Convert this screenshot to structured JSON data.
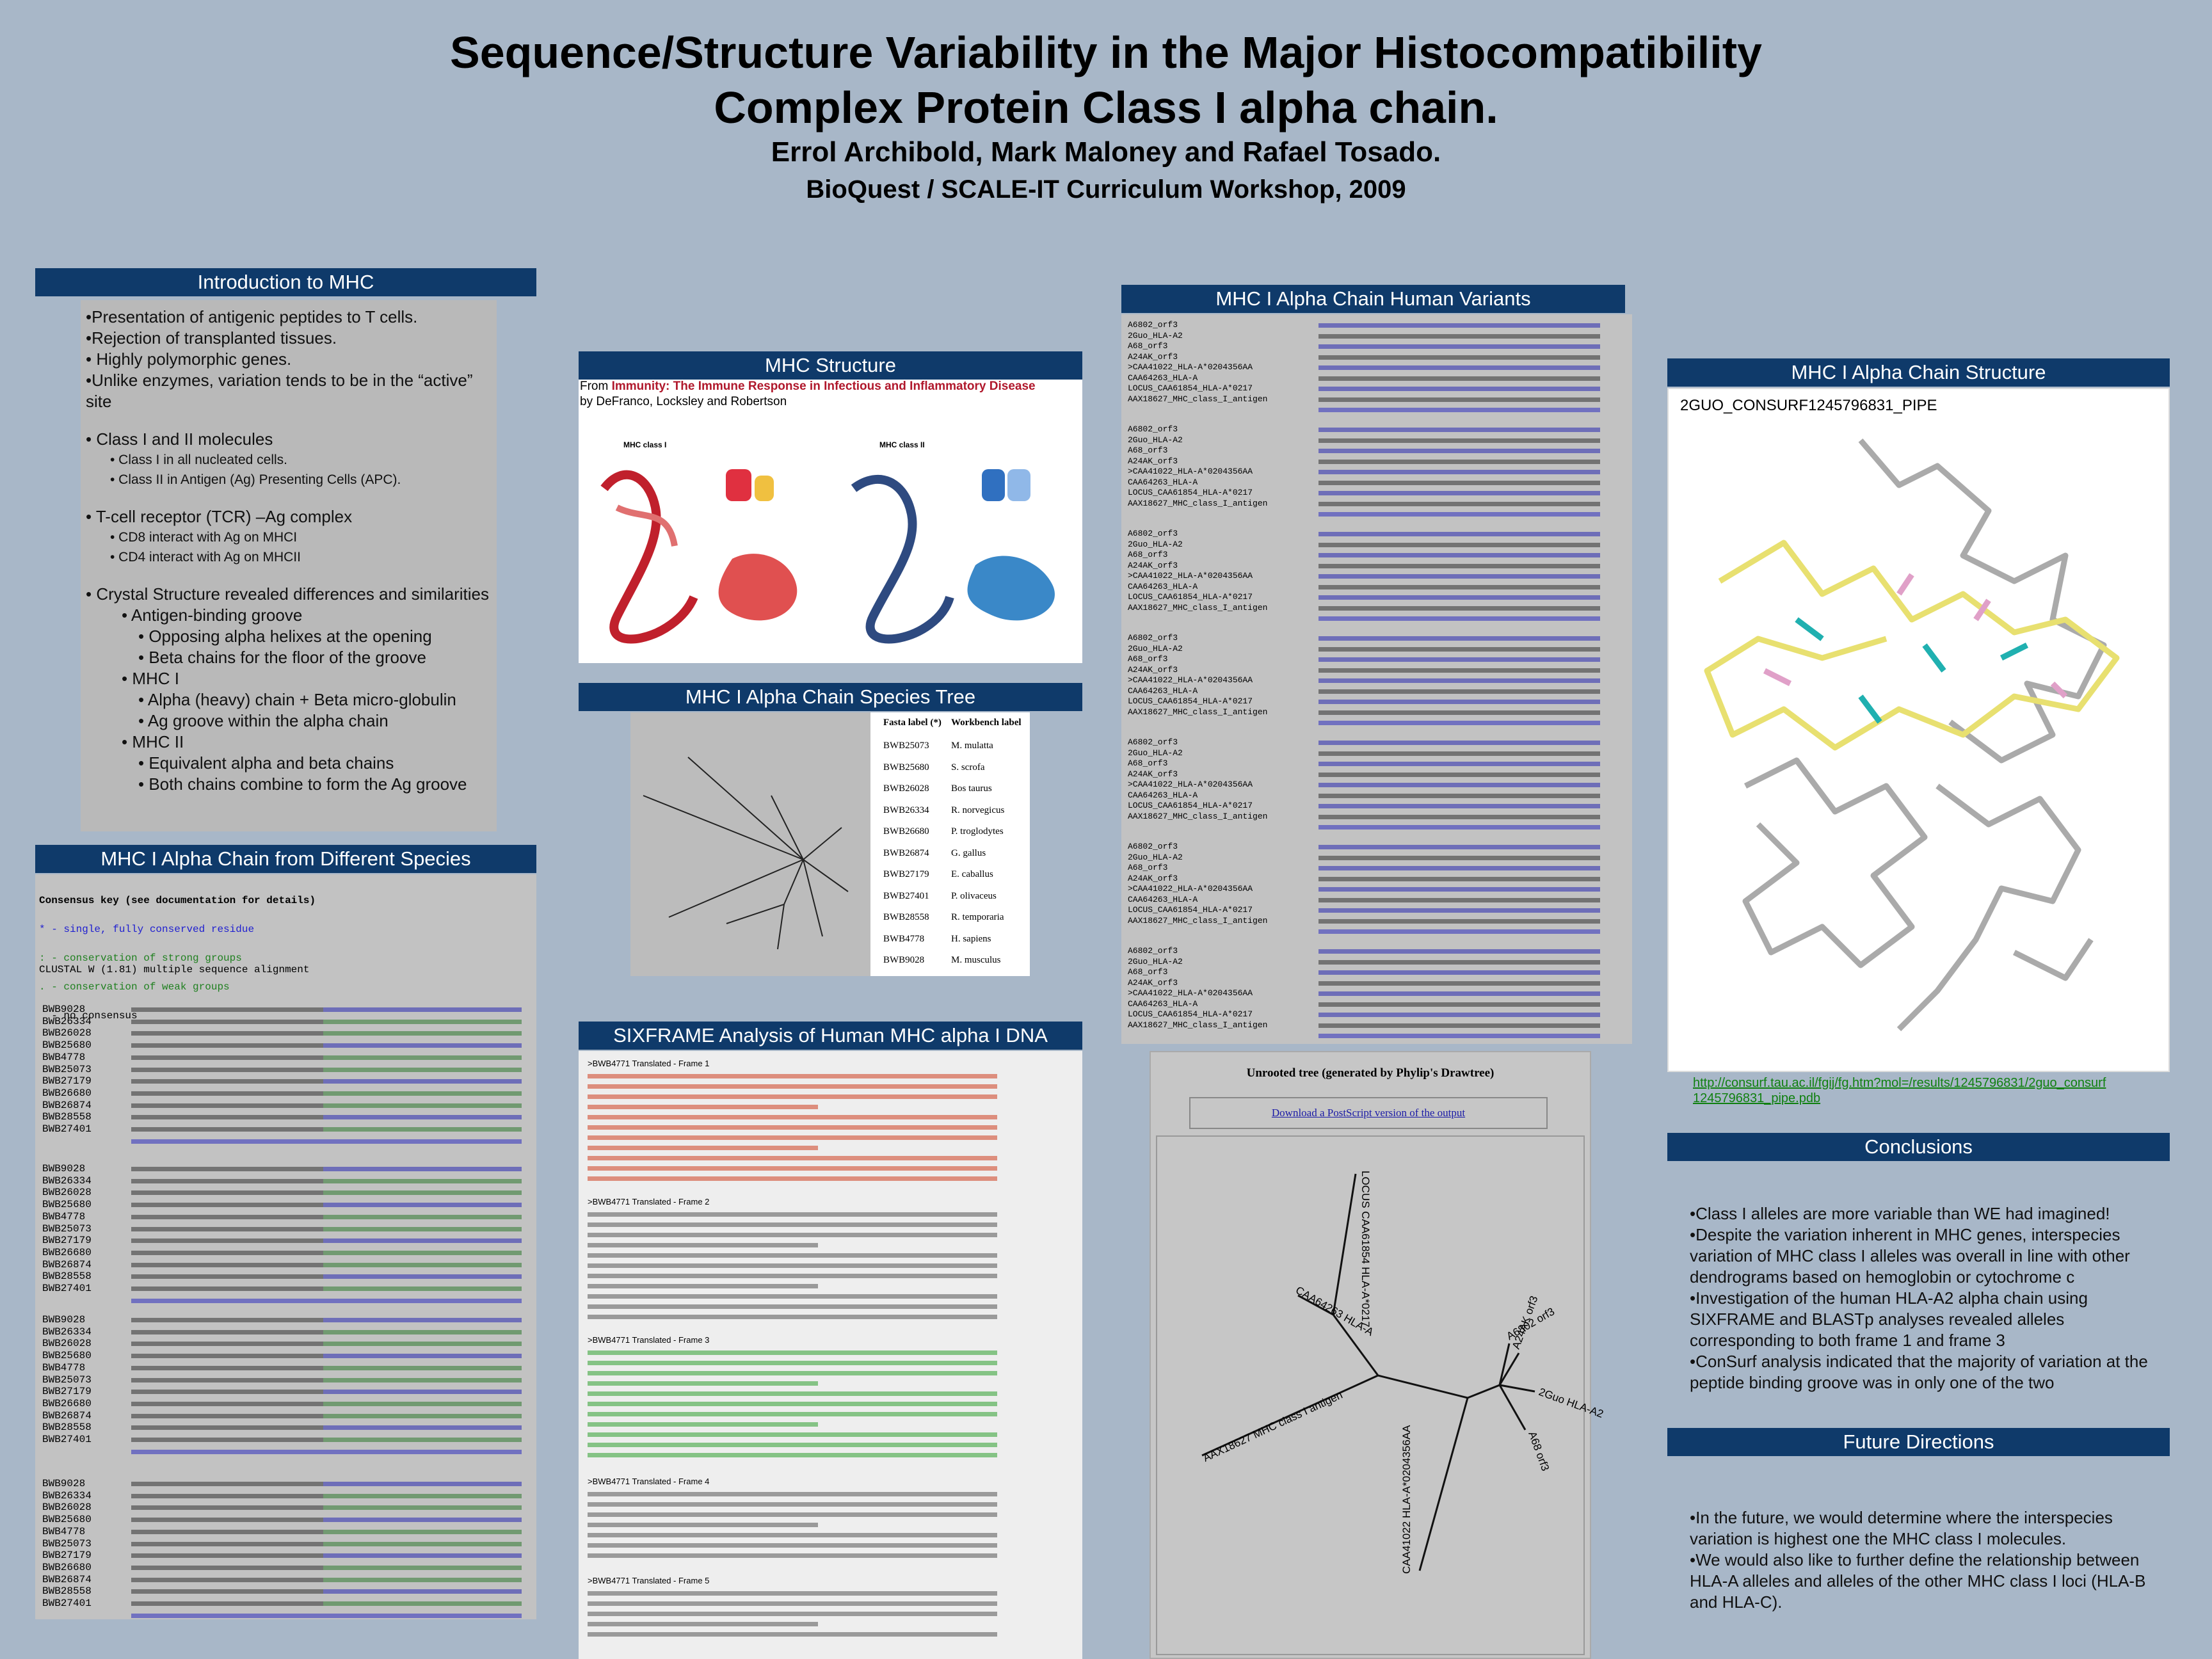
{
  "title": [
    "Sequence/Structure Variability in the Major Histocompatibility",
    "Complex Protein Class I alpha chain."
  ],
  "authors": "Errol Archibold, Mark Maloney and Rafael Tosado.",
  "affiliation": "BioQuest / SCALE-IT Curriculum Workshop, 2009",
  "intro": {
    "heading": "Introduction to MHC",
    "items": [
      "•Presentation of antigenic peptides to T cells.",
      "•Rejection of transplanted tissues.",
      "• Highly polymorphic genes.",
      "•Unlike enzymes, variation tends to be in the “active” site",
      "• Class I and II molecules",
      "• Class I in all nucleated cells.",
      "• Class II in Antigen (Ag) Presenting Cells (APC).",
      "• T-cell receptor (TCR) –Ag complex",
      "• CD8 interact with Ag on MHCI",
      "• CD4 interact with Ag on MHCII",
      "• Crystal Structure revealed differences and similarities",
      "• Antigen-binding groove",
      "• Opposing alpha helixes at the opening",
      "• Beta chains for the floor of the groove",
      "• MHC I",
      "• Alpha (heavy) chain + Beta micro-globulin",
      "• Ag groove within the alpha chain",
      "• MHC II",
      "• Equivalent alpha and beta chains",
      "• Both chains combine to form the Ag groove"
    ]
  },
  "species_alignment": {
    "heading": "MHC I Alpha Chain from Different Species",
    "key": [
      "Consensus key (see documentation for details)",
      "* - single, fully conserved residue",
      ": - conservation of strong groups",
      ". - conservation of weak groups",
      "  - no consensus"
    ],
    "program": "CLUSTAL W (1.81) multiple sequence alignment",
    "names": [
      "BWB9028",
      "BWB26334",
      "BWB26028",
      "BWB25680",
      "BWB4778",
      "BWB25073",
      "BWB27179",
      "BWB26680",
      "BWB26874",
      "BWB28558",
      "BWB27401"
    ]
  },
  "structure": {
    "heading": "MHC Structure",
    "source_prefix": "From ",
    "source": "Immunity: The Immune Response in Infectious and Inflammatory Disease",
    "authors": "by DeFranco, Locksley and Robertson",
    "panels": [
      "MHC class I",
      "MHC class II"
    ]
  },
  "species_tree": {
    "heading": "MHC I Alpha Chain Species Tree",
    "columns": [
      "Fasta label (*)",
      "Workbench label"
    ],
    "rows": [
      [
        "BWB25073",
        "M. mulatta"
      ],
      [
        "BWB25680",
        "S. scrofa"
      ],
      [
        "BWB26028",
        "Bos taurus"
      ],
      [
        "BWB26334",
        "R. norvegicus"
      ],
      [
        "BWB26680",
        "P. troglodytes"
      ],
      [
        "BWB26874",
        "G. gallus"
      ],
      [
        "BWB27179",
        "E. caballus"
      ],
      [
        "BWB27401",
        "P. olivaceus"
      ],
      [
        "BWB28558",
        "R. temporaria"
      ],
      [
        "BWB4778",
        "H. sapiens"
      ],
      [
        "BWB9028",
        "M. musculus"
      ]
    ]
  },
  "sixframe": {
    "heading": "SIXFRAME Analysis of Human MHC alpha I DNA",
    "frames": [
      ">BWB4771 Translated - Frame 1",
      ">BWB4771 Translated - Frame 2",
      ">BWB4771 Translated - Frame 3",
      ">BWB4771 Translated - Frame 4",
      ">BWB4771 Translated - Frame 5"
    ]
  },
  "human_variants": {
    "heading": "MHC I Alpha Chain Human Variants",
    "names": [
      "A6802_orf3",
      "2Guo_HLA-A2",
      "A68_orf3",
      "A24AK_orf3",
      ">CAA41022_HLA-A*0204356AA",
      "CAA64263_HLA-A",
      "LOCUS_CAA61854_HLA-A*0217",
      "AAX18627_MHC_class_I_antigen"
    ]
  },
  "unrooted_tree": {
    "title": "Unrooted tree (generated by Phylip's Drawtree)",
    "link": "Download a PostScript version of the output",
    "leaves": [
      "LOCUS CAA61854 HLA-A*0217",
      "CAA64263 HLA-A",
      "AAX18627 MHC class I antigen",
      "CAA41022 HLA-A*0204356AA",
      "A24AK orf3",
      "A6802 orf3",
      "2Guo HLA-A2",
      "A68 orf3"
    ]
  },
  "chain_structure": {
    "heading": "MHC I Alpha Chain Structure",
    "label": "2GUO_CONSURF1245796831_PIPE",
    "link": "http://consurf.tau.ac.il/fgij/fg.htm?mol=/results/1245796831/2guo_consurf1245796831_pipe.pdb"
  },
  "conclusions": {
    "heading": "Conclusions",
    "items": [
      "•Class I alleles are more variable than WE had imagined!",
      "•Despite the variation inherent in MHC genes, interspecies variation of MHC class I alleles was overall in line with other dendrograms based on hemoglobin or cytochrome c",
      "•Investigation of the human HLA-A2 alpha chain using SIXFRAME and BLASTp analyses revealed alleles corresponding to both frame 1 and frame 3",
      "•ConSurf analysis  indicated that the majority of variation at the peptide binding groove was in only one of the two"
    ]
  },
  "future": {
    "heading": "Future Directions",
    "items": [
      "•In the future, we would determine where the interspecies variation is highest one the MHC class I molecules.",
      "•We would also like to further define the relationship between HLA-A alleles and alleles of the other MHC class I loci (HLA-B and HLA-C)."
    ]
  }
}
